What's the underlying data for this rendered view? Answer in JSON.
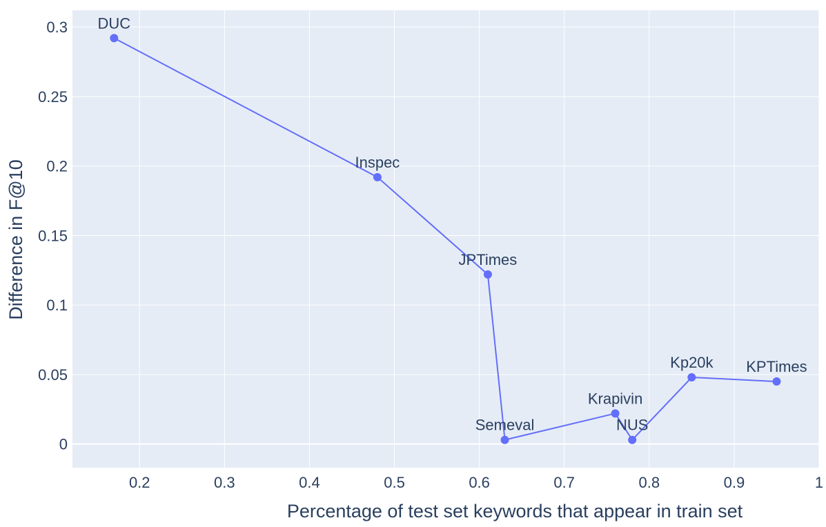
{
  "chart_data": {
    "type": "line",
    "title": "",
    "xlabel": "Percentage of test set keywords that appear in train set",
    "ylabel": "Difference in F@10",
    "xlim": [
      0.121,
      1.0
    ],
    "ylim": [
      -0.017,
      0.312
    ],
    "x_ticks": [
      "0.2",
      "0.3",
      "0.4",
      "0.5",
      "0.6",
      "0.7",
      "0.8",
      "0.9",
      "1"
    ],
    "y_ticks": [
      "0",
      "0.05",
      "0.1",
      "0.15",
      "0.2",
      "0.25",
      "0.3"
    ],
    "grid": true,
    "legend": "none",
    "series": [
      {
        "color": "#636efa",
        "points": [
          {
            "label": "DUC",
            "x": 0.17,
            "y": 0.292
          },
          {
            "label": "Inspec",
            "x": 0.48,
            "y": 0.192
          },
          {
            "label": "JPTimes",
            "x": 0.61,
            "y": 0.122
          },
          {
            "label": "Semeval",
            "x": 0.63,
            "y": 0.003
          },
          {
            "label": "Krapivin",
            "x": 0.76,
            "y": 0.022
          },
          {
            "label": "NUS",
            "x": 0.78,
            "y": 0.003
          },
          {
            "label": "Kp20k",
            "x": 0.85,
            "y": 0.048
          },
          {
            "label": "KPTimes",
            "x": 0.95,
            "y": 0.045
          }
        ]
      }
    ],
    "plot_background": "#e5ecf6",
    "grid_color": "#ffffff"
  }
}
